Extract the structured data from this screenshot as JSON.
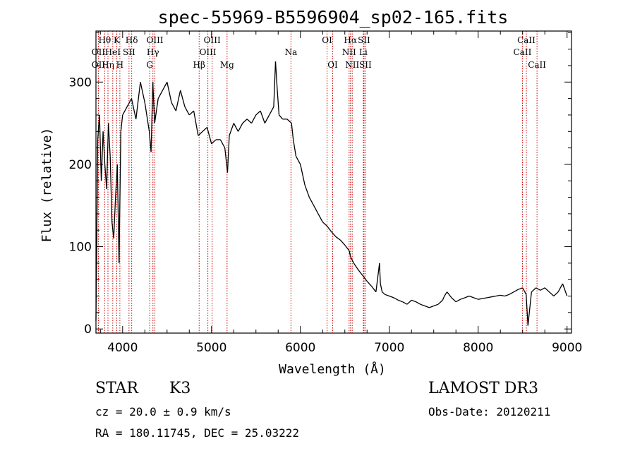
{
  "chart_data": {
    "type": "line",
    "title": "spec-55969-B5596904_sp02-165.fits",
    "xlabel": "Wavelength (Å)",
    "ylabel": "Flux (relative)",
    "xlim": [
      3700,
      9050
    ],
    "ylim": [
      -5,
      362
    ],
    "xticks": [
      4000,
      5000,
      6000,
      7000,
      8000,
      9000
    ],
    "yticks": [
      0,
      100,
      200,
      300
    ],
    "grid": false,
    "legend": "none",
    "line_color": "#000000",
    "marker_color": "#cc0000",
    "series": [
      {
        "name": "Flux",
        "x": [
          3700,
          3720,
          3740,
          3760,
          3780,
          3800,
          3820,
          3840,
          3860,
          3880,
          3900,
          3920,
          3940,
          3960,
          3980,
          4000,
          4050,
          4100,
          4150,
          4200,
          4250,
          4300,
          4320,
          4340,
          4360,
          4400,
          4450,
          4500,
          4550,
          4600,
          4650,
          4700,
          4750,
          4800,
          4850,
          4900,
          4950,
          5000,
          5050,
          5100,
          5150,
          5180,
          5200,
          5250,
          5300,
          5350,
          5400,
          5450,
          5500,
          5550,
          5600,
          5650,
          5700,
          5720,
          5740,
          5760,
          5800,
          5850,
          5900,
          5920,
          5950,
          6000,
          6050,
          6100,
          6150,
          6200,
          6250,
          6300,
          6350,
          6400,
          6450,
          6500,
          6550,
          6563,
          6600,
          6650,
          6700,
          6750,
          6800,
          6850,
          6890,
          6900,
          6920,
          6950,
          7000,
          7050,
          7100,
          7150,
          7200,
          7250,
          7300,
          7350,
          7400,
          7450,
          7500,
          7550,
          7600,
          7620,
          7650,
          7700,
          7750,
          7800,
          7850,
          7900,
          7950,
          8000,
          8050,
          8100,
          8150,
          8200,
          8250,
          8300,
          8350,
          8400,
          8450,
          8500,
          8540,
          8560,
          8600,
          8650,
          8700,
          8750,
          8800,
          8850,
          8900,
          8950,
          9000
        ],
        "values": [
          10,
          230,
          260,
          180,
          240,
          200,
          170,
          250,
          210,
          130,
          110,
          160,
          200,
          80,
          240,
          260,
          270,
          280,
          255,
          300,
          275,
          240,
          215,
          300,
          250,
          280,
          290,
          300,
          275,
          265,
          290,
          270,
          260,
          265,
          235,
          240,
          245,
          225,
          230,
          230,
          220,
          190,
          235,
          250,
          240,
          250,
          255,
          250,
          260,
          265,
          250,
          260,
          270,
          325,
          290,
          260,
          255,
          255,
          250,
          230,
          210,
          200,
          175,
          160,
          150,
          140,
          130,
          125,
          118,
          112,
          108,
          102,
          95,
          88,
          80,
          72,
          65,
          58,
          52,
          45,
          80,
          55,
          45,
          42,
          40,
          38,
          35,
          33,
          30,
          35,
          33,
          30,
          28,
          26,
          28,
          30,
          35,
          40,
          45,
          38,
          33,
          36,
          38,
          40,
          38,
          36,
          37,
          38,
          39,
          40,
          41,
          40,
          42,
          45,
          48,
          50,
          42,
          4,
          45,
          50,
          47,
          50,
          45,
          40,
          45,
          55,
          40
        ]
      }
    ],
    "spectral_lines": [
      {
        "label": "Hθ",
        "x": 3798,
        "row": 1
      },
      {
        "label": "OII",
        "x": 3727,
        "row": 2
      },
      {
        "label": "OII",
        "x": 3727,
        "row": 3
      },
      {
        "label": "K",
        "x": 3934,
        "row": 1
      },
      {
        "label": "HeI",
        "x": 3889,
        "row": 2
      },
      {
        "label": "Hη",
        "x": 3835,
        "row": 3
      },
      {
        "label": "Hδ",
        "x": 4102,
        "row": 1
      },
      {
        "label": "SII",
        "x": 4072,
        "row": 2
      },
      {
        "label": "H",
        "x": 3969,
        "row": 3
      },
      {
        "label": "OIII",
        "x": 4363,
        "row": 1
      },
      {
        "label": "Hγ",
        "x": 4341,
        "row": 2
      },
      {
        "label": "G",
        "x": 4305,
        "row": 3
      },
      {
        "label": "OIII",
        "x": 5007,
        "row": 1
      },
      {
        "label": "OIII",
        "x": 4959,
        "row": 2
      },
      {
        "label": "Hβ",
        "x": 4861,
        "row": 3
      },
      {
        "label": "Mg",
        "x": 5175,
        "row": 3
      },
      {
        "label": "Na",
        "x": 5894,
        "row": 2
      },
      {
        "label": "OI",
        "x": 6300,
        "row": 1
      },
      {
        "label": "OI",
        "x": 6363,
        "row": 3
      },
      {
        "label": "Hα",
        "x": 6563,
        "row": 1
      },
      {
        "label": "NII",
        "x": 6548,
        "row": 2
      },
      {
        "label": "NII",
        "x": 6583,
        "row": 3
      },
      {
        "label": "SII",
        "x": 6716,
        "row": 1
      },
      {
        "label": "Li",
        "x": 6708,
        "row": 2
      },
      {
        "label": "SII",
        "x": 6731,
        "row": 3
      },
      {
        "label": "CaII",
        "x": 8542,
        "row": 1
      },
      {
        "label": "CaII",
        "x": 8498,
        "row": 2
      },
      {
        "label": "CaII",
        "x": 8662,
        "row": 3
      }
    ]
  },
  "info": {
    "object_class": "STAR",
    "subclass": "K3",
    "survey": "LAMOST DR3",
    "cz": "cz = 20.0 ± 0.9 km/s",
    "obs_date": "Obs-Date: 20120211",
    "radec": "RA = 180.11745, DEC =  25.03222"
  }
}
